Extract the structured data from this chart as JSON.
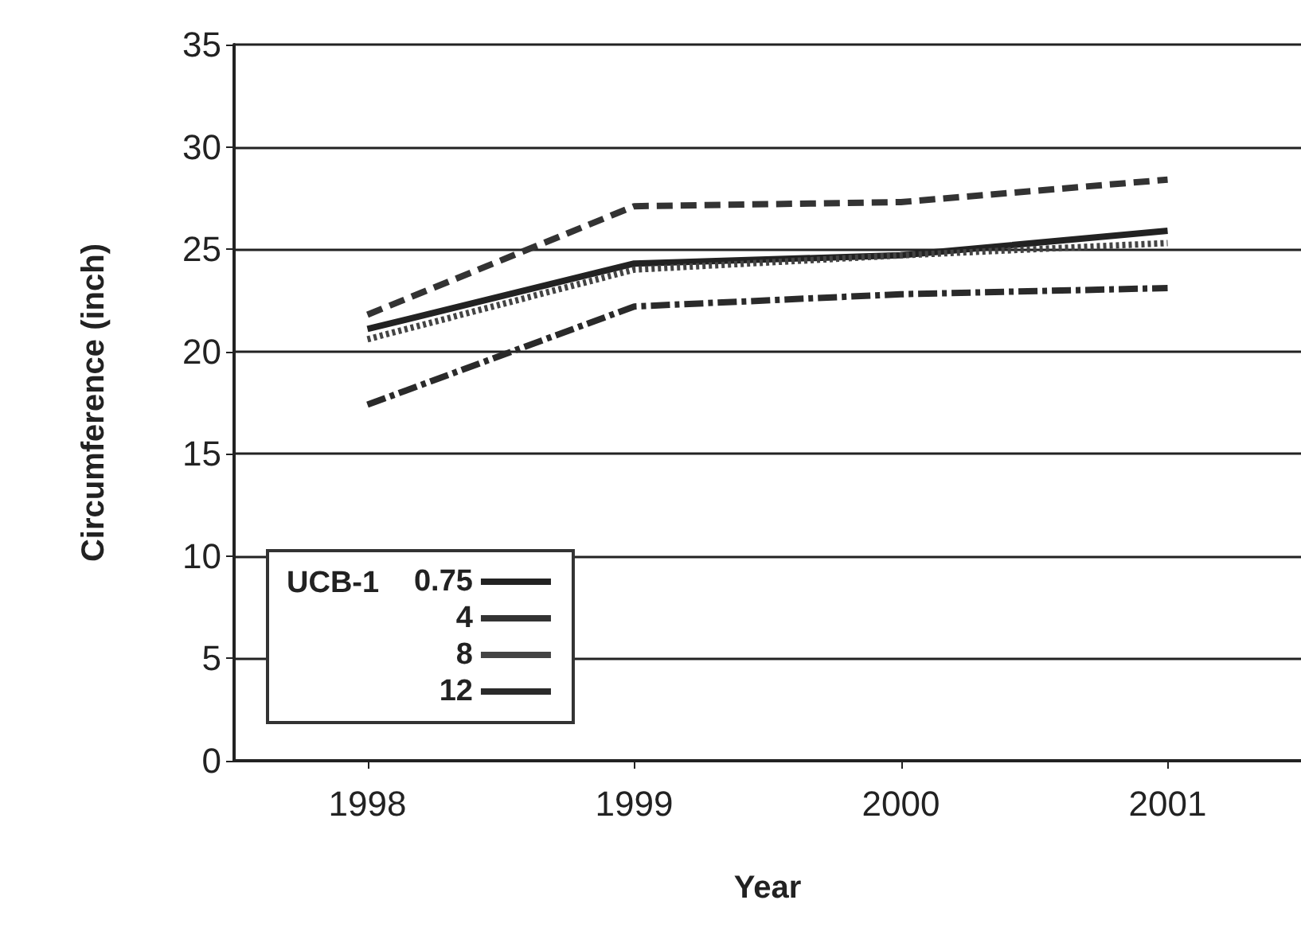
{
  "chart_data": {
    "type": "line",
    "xlabel": "Year",
    "ylabel": "Circumference (inch)",
    "legend_title": "UCB-1",
    "categories": [
      "1998",
      "1999",
      "2000",
      "2001"
    ],
    "series": [
      {
        "name": "0.75",
        "color": "#222222",
        "line_style": "solid",
        "values": [
          21.1,
          24.3,
          24.7,
          25.9
        ]
      },
      {
        "name": "4",
        "color": "#333333",
        "line_style": "dashed",
        "values": [
          21.8,
          27.1,
          27.3,
          28.4
        ]
      },
      {
        "name": "8",
        "color": "#444444",
        "line_style": "dotted",
        "values": [
          20.6,
          24.0,
          24.7,
          25.3
        ]
      },
      {
        "name": "12",
        "color": "#2a2a2a",
        "line_style": "dashdot",
        "values": [
          17.4,
          22.2,
          22.8,
          23.1
        ]
      }
    ],
    "ylim": [
      0,
      35
    ],
    "yticks": [
      0,
      5,
      10,
      15,
      20,
      25,
      30,
      35
    ],
    "grid": "y",
    "legend": "bottom left",
    "marker": "none"
  }
}
